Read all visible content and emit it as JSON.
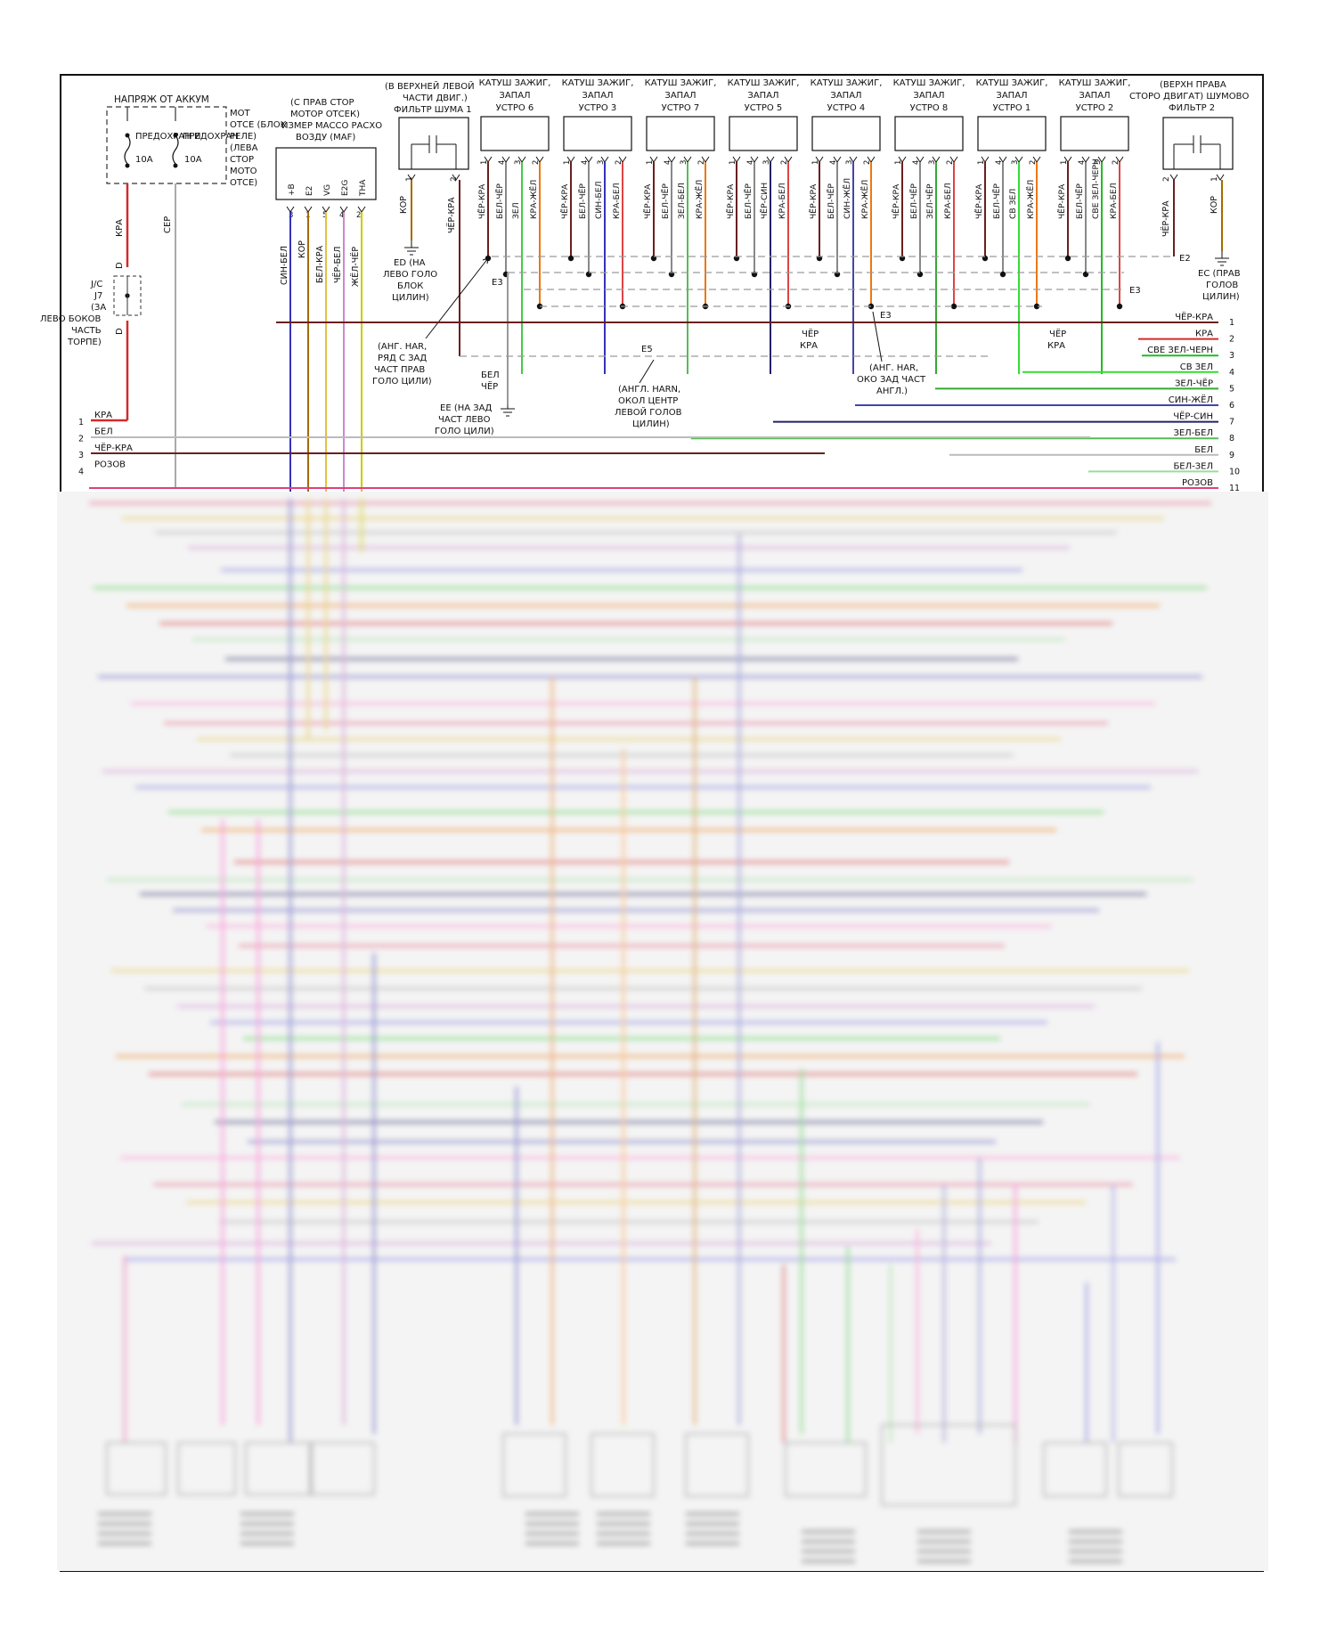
{
  "colors": {
    "frame": "#111111",
    "ground_dash": "#9a9a9a",
    "blurred_overlay": "#f4f4f4",
    "wire_colors": {
      "КРА": "#d42a2a",
      "СЕР": "#aaaaaa",
      "БЕЛ": "#bbbbbb",
      "ЧЁР-КРА": "#6b1f1f",
      "РОЗОВ": "#e0407a",
      "СИН-БЕЛ": "#3333bb",
      "КОР": "#a66a00",
      "БЕЛ-КРА": "#e6c040",
      "ЧЁР-БЕЛ": "#cc88cc",
      "ЖЁЛ-ЧЁР": "#cccc00",
      "ЗЕЛ": "#44cc44",
      "КРА-ЖЁЛ": "#ee7711",
      "СИН-БЕЛ2": "#2222aa",
      "КРА-БЕЛ": "#dd4444",
      "ЗЕЛ-БЕЛ": "#55bb55",
      "ЧЁР-СИН": "#222266",
      "СИН-ЖЁЛ": "#4444aa",
      "ЗЕЛ-ЧЁР": "#33aa33",
      "СВ ЗЕЛ": "#33dd33",
      "СВЕ ЗЕЛ-ЧЕРН": "#22bb22",
      "БЕЛ-ЗЕЛ": "#99dd99"
    }
  },
  "fuse_block": {
    "title": "НАПРЯЖ ОТ АККУМ",
    "fuse_left": "ПРЕДОХРАН И",
    "fuse_right": "ПРЕДОХРАН",
    "rating_left": "10A",
    "rating_right": "10A",
    "label_mot_1": "МОТ",
    "label_mot_2": "ОТСЕ (БЛОК",
    "label_mot_3": "РЕЛЕ)",
    "label_mot_4": "(ЛЕВА",
    "label_mot_5": "СТОР",
    "label_mot_6": "МОТО",
    "label_mot_7": "ОТСЕ)",
    "wire_kra": "КРА",
    "wire_ser": "СЕР"
  },
  "jc_block": {
    "label_d_top": "D",
    "label_d_bottom": "D",
    "line_1": "J/C",
    "line_2": "J7",
    "line_3": "(ЗА",
    "line_4": "ЛЕВО БОКОВ",
    "line_5": "ЧАСТЬ",
    "line_6": "ТОРПЕ)"
  },
  "maf": {
    "title_1": "(С ПРАВ СТОР",
    "title_2": "МОТОР ОТСЕК)",
    "title_3": "ИЗМЕР МАССО РАСХО",
    "title_4": "ВОЗДУ (MAF)",
    "pins": [
      "+B",
      "E2",
      "VG",
      "E2G",
      "THA"
    ],
    "pin_nums": [
      "3",
      "1",
      "5",
      "4",
      "2"
    ],
    "wires": [
      "СИН-БЕЛ",
      "КОР",
      "БЕЛ-КРА",
      "ЧЁР-БЕЛ",
      "ЖЁЛ-ЧЁР"
    ]
  },
  "filter_left": {
    "title_1": "(В ВЕРХНЕЙ ЛЕВОЙ",
    "title_2": "ЧАСТИ ДВИГ.)",
    "title_3": "ФИЛЬТР ШУМА 1",
    "pin_1": "1",
    "pin_2": "2",
    "wire_1": "КОР",
    "wire_2": "ЧЁР-КРА"
  },
  "filter_right": {
    "title_1": "(ВЕРХН ПРАВА",
    "title_2": "СТОРО ДВИГАТ) ШУМОВО",
    "title_3": "ФИЛЬТР 2",
    "pin_1": "2",
    "pin_2": "1",
    "wire_1": "ЧЁР-КРА",
    "wire_2": "КОР"
  },
  "coils": [
    {
      "t1": "КАТУШ ЗАЖИГ,",
      "t2": "ЗАПАЛ",
      "t3": "УСТРО 6",
      "pins": [
        "1",
        "4",
        "3",
        "2"
      ],
      "wires": [
        "ЧЁР-КРА",
        "БЕЛ-ЧЁР",
        "ЗЕЛ",
        "КРА-ЖЁЛ"
      ]
    },
    {
      "t1": "КАТУШ ЗАЖИГ,",
      "t2": "ЗАПАЛ",
      "t3": "УСТРО 3",
      "pins": [
        "1",
        "4",
        "3",
        "2"
      ],
      "wires": [
        "ЧЁР-КРА",
        "БЕЛ-ЧЁР",
        "СИН-БЕЛ",
        "КРА-БЕЛ"
      ]
    },
    {
      "t1": "КАТУШ ЗАЖИГ,",
      "t2": "ЗАПАЛ",
      "t3": "УСТРО 7",
      "pins": [
        "1",
        "4",
        "3",
        "2"
      ],
      "wires": [
        "ЧЁР-КРА",
        "БЕЛ-ЧЁР",
        "ЗЕЛ-БЕЛ",
        "КРА-ЖЁЛ"
      ]
    },
    {
      "t1": "КАТУШ ЗАЖИГ,",
      "t2": "ЗАПАЛ",
      "t3": "УСТРО 5",
      "pins": [
        "1",
        "4",
        "3",
        "2"
      ],
      "wires": [
        "ЧЁР-КРА",
        "БЕЛ-ЧЁР",
        "ЧЁР-СИН",
        "КРА-БЕЛ"
      ]
    },
    {
      "t1": "КАТУШ ЗАЖИГ,",
      "t2": "ЗАПАЛ",
      "t3": "УСТРО 4",
      "pins": [
        "1",
        "4",
        "3",
        "2"
      ],
      "wires": [
        "ЧЁР-КРА",
        "БЕЛ-ЧЁР",
        "СИН-ЖЁЛ",
        "КРА-ЖЁЛ"
      ]
    },
    {
      "t1": "КАТУШ ЗАЖИГ,",
      "t2": "ЗАПАЛ",
      "t3": "УСТРО 8",
      "pins": [
        "1",
        "4",
        "3",
        "2"
      ],
      "wires": [
        "ЧЁР-КРА",
        "БЕЛ-ЧЁР",
        "ЗЕЛ-ЧЁР",
        "КРА-БЕЛ"
      ]
    },
    {
      "t1": "КАТУШ ЗАЖИГ,",
      "t2": "ЗАПАЛ",
      "t3": "УСТРО 1",
      "pins": [
        "1",
        "4",
        "3",
        "2"
      ],
      "wires": [
        "ЧЁР-КРА",
        "БЕЛ-ЧЁР",
        "СВ ЗЕЛ",
        "КРА-ЖЁЛ"
      ]
    },
    {
      "t1": "КАТУШ ЗАЖИГ,",
      "t2": "ЗАПАЛ",
      "t3": "УСТРО 2",
      "pins": [
        "1",
        "4",
        "3",
        "2"
      ],
      "wires": [
        "ЧЁР-КРА",
        "БЕЛ-ЧЁР",
        "СВЕ ЗЕЛ-ЧЕРН",
        "КРА-БЕЛ"
      ]
    }
  ],
  "grounds": {
    "e2_left": "E2",
    "e2_right": "E2",
    "e3_a": "E3",
    "e3_b": "E3",
    "e3_c": "E3",
    "e5": "E5",
    "ed_1": "ED (НА",
    "ed_2": "ЛЕВО ГОЛО",
    "ed_3": "БЛОК",
    "ed_4": "ЦИЛИН)",
    "ec_1": "EC (ПРАВ",
    "ec_2": "ГОЛОВ",
    "ec_3": "ЦИЛИН)",
    "ee_1": "EE (НА ЗАД",
    "ee_2": "ЧАСТ ЛЕВО",
    "ee_3": "ГОЛО ЦИЛИ)",
    "bel_cher_1": "БЕЛ",
    "bel_cher_2": "ЧЁР",
    "harn_right_1": "(АНГ. HAR,",
    "harn_right_2": "РЯД С ЗАД",
    "harn_right_3": "ЧАСТ ПРАВ",
    "harn_right_4": "ГОЛО ЦИЛИ)",
    "harn_center_1": "(АНГЛ. HARN,",
    "harn_center_2": "ОКОЛ ЦЕНТР",
    "harn_center_3": "ЛЕВОЙ ГОЛОВ",
    "harn_center_4": "ЦИЛИН)",
    "harn_rear_1": "(АНГ. HAR,",
    "harn_rear_2": "ОКО ЗАД ЧАСТ",
    "harn_rear_3": "АНГЛ.)",
    "cher_kra_a_1": "ЧЁР",
    "cher_kra_a_2": "КРА",
    "cher_kra_b_1": "ЧЁР",
    "cher_kra_b_2": "КРА"
  },
  "right_bus": [
    {
      "num": "1",
      "label": "ЧЁР-КРА"
    },
    {
      "num": "2",
      "label": "КРА"
    },
    {
      "num": "3",
      "label": "СВЕ ЗЕЛ-ЧЕРН"
    },
    {
      "num": "4",
      "label": "СВ ЗЕЛ"
    },
    {
      "num": "5",
      "label": "ЗЕЛ-ЧЁР"
    },
    {
      "num": "6",
      "label": "СИН-ЖЁЛ"
    },
    {
      "num": "7",
      "label": "ЧЁР-СИН"
    },
    {
      "num": "8",
      "label": "ЗЕЛ-БЕЛ"
    },
    {
      "num": "9",
      "label": "БЕЛ"
    },
    {
      "num": "10",
      "label": "БЕЛ-ЗЕЛ"
    },
    {
      "num": "11",
      "label": "РОЗОВ"
    }
  ],
  "left_bus": [
    {
      "num": "1",
      "label": "КРА"
    },
    {
      "num": "2",
      "label": "БЕЛ"
    },
    {
      "num": "3",
      "label": "ЧЁР-КРА"
    },
    {
      "num": "4",
      "label": "РОЗОВ"
    }
  ]
}
